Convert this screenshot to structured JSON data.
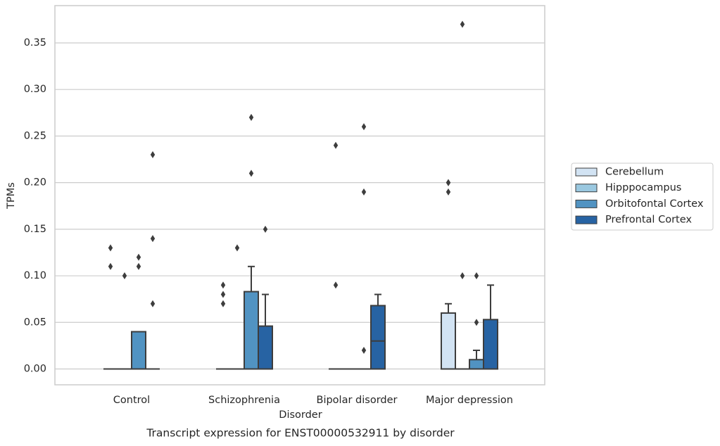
{
  "chart_data": {
    "type": "box",
    "title": "Transcript expression for ENST00000532911 by disorder",
    "x_label": "Disorder",
    "y_label": "TPMs",
    "categories": [
      "Control",
      "Schizophrenia",
      "Bipolar disorder",
      "Major depression"
    ],
    "ylim": [
      -0.017,
      0.39
    ],
    "yticks": [
      {
        "value": 0,
        "label": "0.00"
      },
      0.05,
      {
        "value": 0.1,
        "label": "0.10"
      },
      0.15,
      {
        "value": 0.2,
        "label": "0.20"
      },
      0.25,
      {
        "value": 0.3,
        "label": "0.30"
      },
      0.35
    ],
    "grid": true,
    "legend_position": "right",
    "series": [
      {
        "name": "Cerebellum",
        "color": "#d2e3f3",
        "boxes": [
          {
            "min": 0,
            "q1": 0,
            "median": 0,
            "q3": 0,
            "max": 0,
            "outliers": [
              0.13,
              0.11
            ]
          },
          {
            "min": 0,
            "q1": 0,
            "median": 0,
            "q3": 0,
            "max": 0,
            "outliers": [
              0.09,
              0.08,
              0.07
            ]
          },
          {
            "min": 0,
            "q1": 0,
            "median": 0,
            "q3": 0,
            "max": 0,
            "outliers": [
              0.24,
              0.09
            ]
          },
          {
            "min": 0,
            "q1": 0,
            "median": 0,
            "q3": 0.06,
            "max": 0.07,
            "outliers": [
              0.2,
              0.2,
              0.19
            ]
          }
        ]
      },
      {
        "name": "Hipppocampus",
        "color": "#9ac8e0",
        "boxes": [
          {
            "min": 0,
            "q1": 0,
            "median": 0,
            "q3": 0,
            "max": 0,
            "outliers": [
              0.1
            ]
          },
          {
            "min": 0,
            "q1": 0,
            "median": 0,
            "q3": 0,
            "max": 0,
            "outliers": [
              0.13
            ]
          },
          {
            "min": 0,
            "q1": 0,
            "median": 0,
            "q3": 0,
            "max": 0,
            "outliers": []
          },
          {
            "min": 0,
            "q1": 0,
            "median": 0,
            "q3": 0,
            "max": 0,
            "outliers": [
              0.37,
              0.1
            ]
          }
        ]
      },
      {
        "name": "Orbitofontal Cortex",
        "color": "#5193c2",
        "boxes": [
          {
            "min": 0,
            "q1": 0,
            "median": 0,
            "q3": 0.04,
            "max": 0.04,
            "outliers": [
              0.12,
              0.11
            ]
          },
          {
            "min": 0,
            "q1": 0,
            "median": 0,
            "q3": 0.083,
            "max": 0.11,
            "outliers": [
              0.27,
              0.21
            ]
          },
          {
            "min": 0,
            "q1": 0,
            "median": 0,
            "q3": 0,
            "max": 0,
            "outliers": [
              0.26,
              0.19,
              0.02
            ]
          },
          {
            "min": 0,
            "q1": 0,
            "median": 0,
            "q3": 0.01,
            "max": 0.02,
            "outliers": [
              0.1,
              0.05
            ]
          }
        ]
      },
      {
        "name": "Prefrontal Cortex",
        "color": "#2763a3",
        "boxes": [
          {
            "min": 0,
            "q1": 0,
            "median": 0,
            "q3": 0,
            "max": 0,
            "outliers": [
              0.23,
              0.14,
              0.07
            ]
          },
          {
            "min": 0,
            "q1": 0,
            "median": 0,
            "q3": 0.046,
            "max": 0.08,
            "outliers": [
              0.15
            ]
          },
          {
            "min": 0,
            "q1": 0,
            "median": 0.03,
            "q3": 0.068,
            "max": 0.08,
            "outliers": []
          },
          {
            "min": 0,
            "q1": 0,
            "median": 0,
            "q3": 0.053,
            "max": 0.09,
            "outliers": []
          }
        ]
      }
    ]
  }
}
